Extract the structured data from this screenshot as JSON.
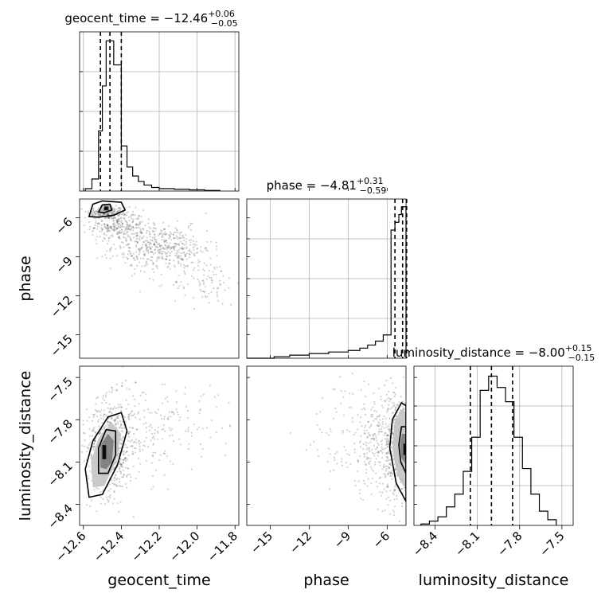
{
  "chart_data": {
    "type": "corner",
    "parameters": [
      {
        "key": "geocent_time",
        "label": "geocent_time",
        "title_prefix": "geocent_time = ",
        "median": "−12.46",
        "plus": "+0.06",
        "minus": "−0.05",
        "range": [
          -12.62,
          -11.78
        ],
        "ticks": [
          -12.6,
          -12.4,
          -12.2,
          -12.0,
          -11.8
        ],
        "tick_labels": [
          "−12.6",
          "−12.4",
          "−12.2",
          "−12.0",
          "−11.8"
        ],
        "quantiles": [
          -12.51,
          -12.46,
          -12.4
        ],
        "hist_x": [
          -12.59,
          -12.555,
          -12.52,
          -12.5,
          -12.48,
          -12.46,
          -12.44,
          -12.42,
          -12.4,
          -12.37,
          -12.34,
          -12.31,
          -12.28,
          -12.24,
          -12.2,
          -12.12,
          -12.04,
          -11.96,
          -11.88
        ],
        "hist_y": [
          4,
          20,
          100,
          175,
          250,
          250,
          210,
          210,
          75,
          40,
          25,
          16,
          10,
          6,
          4,
          3,
          2,
          1
        ],
        "hist_ymax": 265
      },
      {
        "key": "phase",
        "label": "phase",
        "title_prefix": "phase = ",
        "median": "−4.81",
        "plus": "+0.31",
        "minus": "−0.59",
        "range": [
          -16.8,
          -4.55
        ],
        "ticks": [
          -15,
          -12,
          -9,
          -6
        ],
        "tick_labels": [
          "−15",
          "−12",
          "−9",
          "−6"
        ],
        "quantiles": [
          -5.4,
          -4.81,
          -4.5
        ],
        "hist_x": [
          -16.8,
          -14.7,
          -13.5,
          -12.0,
          -10.5,
          -9.0,
          -8.1,
          -7.5,
          -6.9,
          -6.3,
          -5.7,
          -5.4,
          -5.1,
          -4.9,
          -4.55
        ],
        "hist_y": [
          0,
          2,
          4,
          6,
          8,
          10,
          13,
          17,
          22,
          30,
          165,
          175,
          185,
          195
        ],
        "hist_ymax": 205
      },
      {
        "key": "luminosity_distance",
        "label": "luminosity_distance",
        "title_prefix": "luminosity_distance = ",
        "median": "−8.00",
        "plus": "+0.15",
        "minus": "−0.15",
        "range": [
          -8.55,
          -7.42
        ],
        "ticks": [
          -8.4,
          -8.1,
          -7.8,
          -7.5
        ],
        "tick_labels": [
          "−8.4",
          "−8.1",
          "−7.8",
          "−7.5"
        ],
        "quantiles": [
          -8.15,
          -8.0,
          -7.85
        ],
        "hist_x": [
          -8.5,
          -8.44,
          -8.38,
          -8.32,
          -8.26,
          -8.2,
          -8.14,
          -8.08,
          -8.02,
          -7.96,
          -7.9,
          -7.84,
          -7.78,
          -7.72,
          -7.66,
          -7.6,
          -7.54
        ],
        "hist_y": [
          1,
          3,
          6,
          13,
          22,
          38,
          62,
          95,
          105,
          97,
          87,
          62,
          40,
          22,
          10,
          4
        ],
        "hist_ymax": 112
      }
    ],
    "pairs": [
      {
        "x": "geocent_time",
        "y": "phase",
        "samples": [
          {
            "center": [
              -12.48,
              -5.6
            ],
            "spread": [
              0.05,
              0.25
            ],
            "n": 160
          },
          {
            "center": [
              -12.42,
              -6.6
            ],
            "spread": [
              0.07,
              0.6
            ],
            "n": 260
          },
          {
            "center": [
              -12.25,
              -8.2
            ],
            "spread": [
              0.1,
              0.9
            ],
            "n": 280
          },
          {
            "center": [
              -12.12,
              -8.4
            ],
            "spread": [
              0.1,
              0.8
            ],
            "n": 200
          },
          {
            "center": [
              -11.95,
              -11.0
            ],
            "spread": [
              0.09,
              0.9
            ],
            "n": 90
          }
        ],
        "contours": [
          [
            [
              -12.57,
              -5.9
            ],
            [
              -12.55,
              -4.95
            ],
            [
              -12.5,
              -4.7
            ],
            [
              -12.4,
              -4.8
            ],
            [
              -12.38,
              -5.4
            ],
            [
              -12.44,
              -5.8
            ],
            [
              -12.52,
              -5.95
            ]
          ],
          [
            [
              -12.52,
              -5.55
            ],
            [
              -12.5,
              -5.0
            ],
            [
              -12.46,
              -4.95
            ],
            [
              -12.45,
              -5.4
            ],
            [
              -12.49,
              -5.6
            ]
          ]
        ],
        "filled_levels": [
          {
            "poly": [
              [
                -12.52,
                -5.7
              ],
              [
                -12.51,
                -5.0
              ],
              [
                -12.45,
                -5.0
              ],
              [
                -12.44,
                -5.6
              ]
            ],
            "shade": "#bdbdbd"
          },
          {
            "poly": [
              [
                -12.495,
                -5.45
              ],
              [
                -12.49,
                -5.05
              ],
              [
                -12.465,
                -5.1
              ],
              [
                -12.465,
                -5.45
              ]
            ],
            "shade": "#6d6d6d"
          },
          {
            "poly": [
              [
                -12.49,
                -5.4
              ],
              [
                -12.49,
                -5.15
              ],
              [
                -12.47,
                -5.15
              ],
              [
                -12.47,
                -5.4
              ]
            ],
            "shade": "#000000"
          }
        ]
      },
      {
        "x": "geocent_time",
        "y": "luminosity_distance",
        "samples": [
          {
            "center": [
              -12.46,
              -8.0
            ],
            "spread": [
              0.06,
              0.17
            ],
            "n": 650
          },
          {
            "center": [
              -12.3,
              -7.85
            ],
            "spread": [
              0.1,
              0.18
            ],
            "n": 150
          },
          {
            "center": [
              -12.05,
              -7.8
            ],
            "spread": [
              0.14,
              0.15
            ],
            "n": 70
          }
        ],
        "contours": [
          [
            [
              -12.57,
              -8.35
            ],
            [
              -12.59,
              -8.15
            ],
            [
              -12.55,
              -7.95
            ],
            [
              -12.47,
              -7.78
            ],
            [
              -12.4,
              -7.75
            ],
            [
              -12.37,
              -7.88
            ],
            [
              -12.42,
              -8.12
            ],
            [
              -12.5,
              -8.33
            ]
          ],
          [
            [
              -12.52,
              -8.18
            ],
            [
              -12.52,
              -8.0
            ],
            [
              -12.48,
              -7.87
            ],
            [
              -12.43,
              -7.88
            ],
            [
              -12.43,
              -8.05
            ],
            [
              -12.47,
              -8.18
            ]
          ]
        ],
        "filled_levels": [
          {
            "poly": [
              [
                -12.55,
                -8.28
              ],
              [
                -12.56,
                -8.1
              ],
              [
                -12.52,
                -7.93
              ],
              [
                -12.45,
                -7.82
              ],
              [
                -12.4,
                -7.9
              ],
              [
                -12.43,
                -8.1
              ],
              [
                -12.49,
                -8.27
              ]
            ],
            "shade": "#c4c4c4"
          },
          {
            "poly": [
              [
                -12.51,
                -8.14
              ],
              [
                -12.51,
                -7.98
              ],
              [
                -12.47,
                -7.9
              ],
              [
                -12.44,
                -7.95
              ],
              [
                -12.45,
                -8.1
              ],
              [
                -12.48,
                -8.15
              ]
            ],
            "shade": "#7a7a7a"
          },
          {
            "poly": [
              [
                -12.5,
                -8.08
              ],
              [
                -12.5,
                -7.98
              ],
              [
                -12.48,
                -7.98
              ],
              [
                -12.48,
                -8.08
              ]
            ],
            "shade": "#000000"
          }
        ]
      },
      {
        "x": "phase",
        "y": "luminosity_distance",
        "samples": [
          {
            "center": [
              -5.1,
              -8.0
            ],
            "spread": [
              0.55,
              0.18
            ],
            "n": 550
          },
          {
            "center": [
              -6.8,
              -7.95
            ],
            "spread": [
              1.2,
              0.2
            ],
            "n": 260
          },
          {
            "center": [
              -9.5,
              -7.9
            ],
            "spread": [
              1.8,
              0.2
            ],
            "n": 60
          }
        ],
        "contours": [
          [
            [
              -4.55,
              -8.38
            ],
            [
              -5.3,
              -8.25
            ],
            [
              -5.8,
              -8.0
            ],
            [
              -5.6,
              -7.8
            ],
            [
              -4.9,
              -7.68
            ],
            [
              -4.55,
              -7.7
            ]
          ],
          [
            [
              -4.55,
              -8.18
            ],
            [
              -4.95,
              -8.1
            ],
            [
              -5.1,
              -7.98
            ],
            [
              -4.9,
              -7.85
            ],
            [
              -4.55,
              -7.85
            ]
          ]
        ],
        "filled_levels": [
          {
            "poly": [
              [
                -4.55,
                -8.3
              ],
              [
                -5.2,
                -8.2
              ],
              [
                -5.6,
                -8.0
              ],
              [
                -5.4,
                -7.8
              ],
              [
                -4.8,
                -7.72
              ],
              [
                -4.55,
                -7.75
              ]
            ],
            "shade": "#c4c4c4"
          },
          {
            "poly": [
              [
                -4.55,
                -8.12
              ],
              [
                -4.9,
                -8.07
              ],
              [
                -5.0,
                -7.98
              ],
              [
                -4.85,
                -7.9
              ],
              [
                -4.55,
                -7.9
              ]
            ],
            "shade": "#7a7a7a"
          },
          {
            "poly": [
              [
                -4.55,
                -8.05
              ],
              [
                -4.75,
                -8.05
              ],
              [
                -4.75,
                -7.97
              ],
              [
                -4.55,
                -7.97
              ]
            ],
            "shade": "#000000"
          }
        ]
      }
    ],
    "grid": true,
    "colors": {
      "line": "#000000",
      "scatter": "#000000",
      "grid": "#b0b0b0"
    }
  }
}
